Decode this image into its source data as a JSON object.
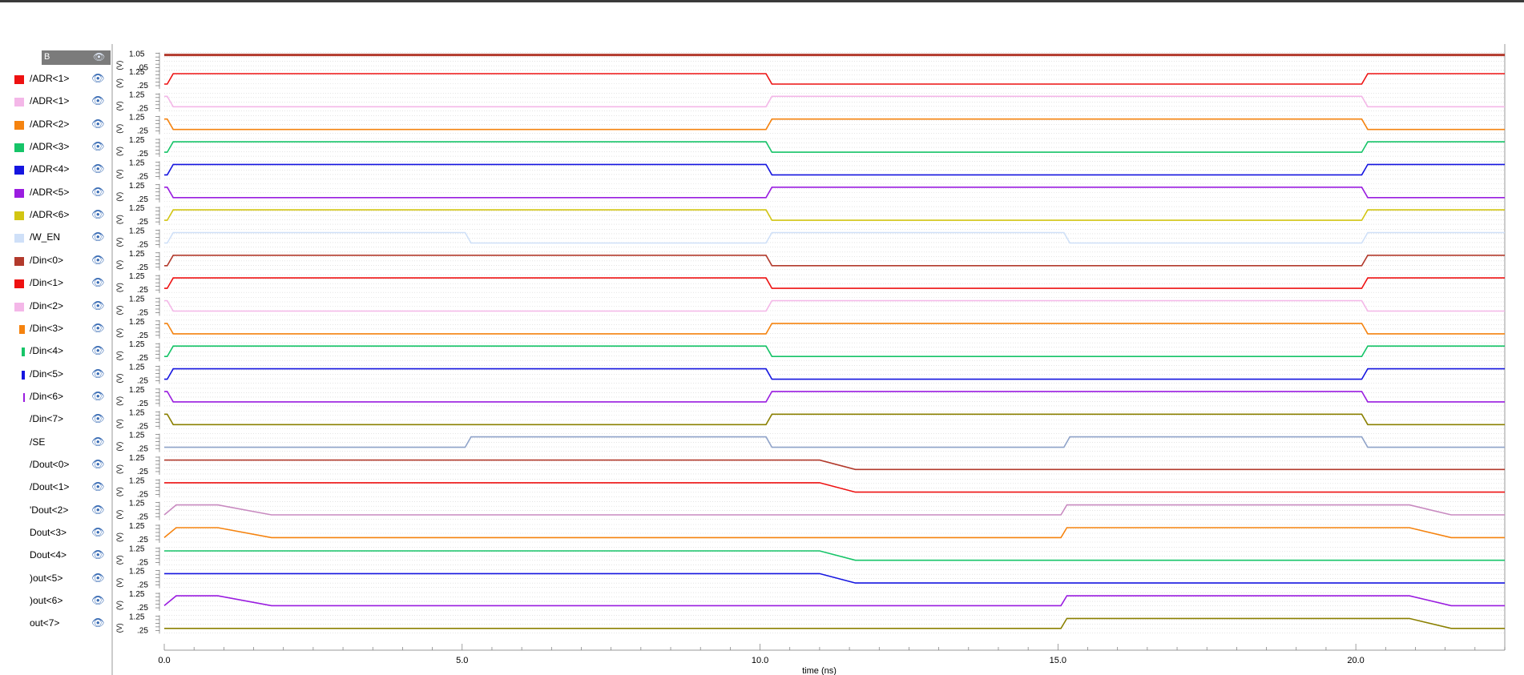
{
  "header": {
    "label": "B",
    "eye": "👁"
  },
  "signals": [
    {
      "name": "/ADR<1>",
      "color": "#ee1111",
      "swatch": "sq"
    },
    {
      "name": "/ADR<1>",
      "color": "#f4b7e8",
      "swatch": "sq"
    },
    {
      "name": "/ADR<2>",
      "color": "#f5830f",
      "swatch": "sq"
    },
    {
      "name": "/ADR<3>",
      "color": "#16c468",
      "swatch": "sq"
    },
    {
      "name": "/ADR<4>",
      "color": "#1515e0",
      "swatch": "sq"
    },
    {
      "name": "/ADR<5>",
      "color": "#9a1de0",
      "swatch": "sq"
    },
    {
      "name": "/ADR<6>",
      "color": "#d2c512",
      "swatch": "sq"
    },
    {
      "name": "/W_EN",
      "color": "#cfe0f8",
      "swatch": "sq"
    },
    {
      "name": "/Din<0>",
      "color": "#b23a2c",
      "swatch": "sq"
    },
    {
      "name": "/Din<1>",
      "color": "#ee1111",
      "swatch": "sq"
    },
    {
      "name": "/Din<2>",
      "color": "#f4b7e8",
      "swatch": "sq"
    },
    {
      "name": "/Din<3>",
      "color": "#f5830f",
      "swatch": "small"
    },
    {
      "name": "/Din<4>",
      "color": "#16c468",
      "swatch": "thin"
    },
    {
      "name": "/Din<5>",
      "color": "#1515e0",
      "swatch": "thin"
    },
    {
      "name": "/Din<6>",
      "color": "#9a1de0",
      "swatch": "line"
    },
    {
      "name": "/Din<7>",
      "color": "#8b8000",
      "swatch": "none"
    },
    {
      "name": "/SE",
      "color": "#8fa3c9",
      "swatch": "none"
    },
    {
      "name": "/Dout<0>",
      "color": "#b23a2c",
      "swatch": "none"
    },
    {
      "name": "/Dout<1>",
      "color": "#ee1111",
      "swatch": "none"
    },
    {
      "name": "'Dout<2>",
      "color": "#c88ac0",
      "swatch": "none"
    },
    {
      "name": "Dout<3>",
      "color": "#f5830f",
      "swatch": "none"
    },
    {
      "name": "Dout<4>",
      "color": "#16c468",
      "swatch": "none"
    },
    {
      "name": ")out<5>",
      "color": "#1515e0",
      "swatch": "none"
    },
    {
      "name": ")out<6>",
      "color": "#9a1de0",
      "swatch": "none"
    },
    {
      "name": "out<7>",
      "color": "#8b8000",
      "swatch": "none"
    }
  ],
  "chart_data": {
    "type": "line",
    "xlabel": "time (ns)",
    "x_ticks": [
      "0.0",
      "5.0",
      "10.0",
      "15.0",
      "20.0"
    ],
    "xlim": [
      0,
      22.5
    ],
    "unit_label": "(V)",
    "tick_labels": {
      "high": "1.25",
      "low": ".25"
    },
    "top_trace": {
      "color": "#b23a2c",
      "value": 1.05,
      "tick_labels": [
        "1.05",
        ".05"
      ]
    },
    "series": [
      {
        "name": "/ADR<1>",
        "initial": 0,
        "transitions": [
          [
            0.05,
            1
          ],
          [
            10.1,
            0
          ],
          [
            20.1,
            1
          ]
        ]
      },
      {
        "name": "/ADR<1>",
        "initial": 1,
        "transitions": [
          [
            0.05,
            0
          ],
          [
            10.1,
            1
          ],
          [
            20.1,
            0
          ]
        ]
      },
      {
        "name": "/ADR<2>",
        "initial": 1,
        "transitions": [
          [
            0.05,
            0
          ],
          [
            10.1,
            1
          ],
          [
            20.1,
            0
          ]
        ]
      },
      {
        "name": "/ADR<3>",
        "initial": 0,
        "transitions": [
          [
            0.05,
            1
          ],
          [
            10.1,
            0
          ],
          [
            20.1,
            1
          ]
        ]
      },
      {
        "name": "/ADR<4>",
        "initial": 0,
        "transitions": [
          [
            0.05,
            1
          ],
          [
            10.1,
            0
          ],
          [
            20.1,
            1
          ]
        ]
      },
      {
        "name": "/ADR<5>",
        "initial": 1,
        "transitions": [
          [
            0.05,
            0
          ],
          [
            10.1,
            1
          ],
          [
            20.1,
            0
          ]
        ]
      },
      {
        "name": "/ADR<6>",
        "initial": 0,
        "transitions": [
          [
            0.05,
            1
          ],
          [
            10.1,
            0
          ],
          [
            20.1,
            1
          ]
        ]
      },
      {
        "name": "/W_EN",
        "initial": 0,
        "transitions": [
          [
            0.05,
            1
          ],
          [
            5.05,
            0
          ],
          [
            10.1,
            1
          ],
          [
            15.1,
            0
          ],
          [
            20.1,
            1
          ]
        ]
      },
      {
        "name": "/Din<0>",
        "initial": 0,
        "transitions": [
          [
            0.05,
            1
          ],
          [
            10.1,
            0
          ],
          [
            20.1,
            1
          ]
        ]
      },
      {
        "name": "/Din<1>",
        "initial": 0,
        "transitions": [
          [
            0.05,
            1
          ],
          [
            10.1,
            0
          ],
          [
            20.1,
            1
          ]
        ]
      },
      {
        "name": "/Din<2>",
        "initial": 1,
        "transitions": [
          [
            0.05,
            0
          ],
          [
            10.1,
            1
          ],
          [
            20.1,
            0
          ]
        ]
      },
      {
        "name": "/Din<3>",
        "initial": 1,
        "transitions": [
          [
            0.05,
            0
          ],
          [
            10.1,
            1
          ],
          [
            20.1,
            0
          ]
        ]
      },
      {
        "name": "/Din<4>",
        "initial": 0,
        "transitions": [
          [
            0.05,
            1
          ],
          [
            10.1,
            0
          ],
          [
            20.1,
            1
          ]
        ]
      },
      {
        "name": "/Din<5>",
        "initial": 0,
        "transitions": [
          [
            0.05,
            1
          ],
          [
            10.1,
            0
          ],
          [
            20.1,
            1
          ]
        ]
      },
      {
        "name": "/Din<6>",
        "initial": 1,
        "transitions": [
          [
            0.05,
            0
          ],
          [
            10.1,
            1
          ],
          [
            20.1,
            0
          ]
        ]
      },
      {
        "name": "/Din<7>",
        "initial": 1,
        "transitions": [
          [
            0.05,
            0
          ],
          [
            10.1,
            1
          ],
          [
            20.1,
            0
          ]
        ]
      },
      {
        "name": "/SE",
        "initial": 0,
        "transitions": [
          [
            5.05,
            1
          ],
          [
            10.1,
            0
          ],
          [
            15.1,
            1
          ],
          [
            20.1,
            0
          ]
        ]
      },
      {
        "name": "/Dout<0>",
        "points": [
          [
            0,
            0.95
          ],
          [
            11.0,
            0.95
          ],
          [
            11.6,
            0.05
          ],
          [
            22.5,
            0.05
          ]
        ]
      },
      {
        "name": "/Dout<1>",
        "points": [
          [
            0,
            0.95
          ],
          [
            11.0,
            0.95
          ],
          [
            11.6,
            0.05
          ],
          [
            22.5,
            0.05
          ]
        ]
      },
      {
        "name": "'Dout<2>",
        "points": [
          [
            0,
            0.05
          ],
          [
            0.2,
            1.0
          ],
          [
            0.9,
            1.0
          ],
          [
            1.8,
            0.05
          ],
          [
            15.05,
            0.05
          ],
          [
            15.15,
            1.0
          ],
          [
            20.9,
            1.0
          ],
          [
            21.6,
            0.05
          ],
          [
            22.5,
            0.05
          ]
        ]
      },
      {
        "name": "Dout<3>",
        "points": [
          [
            0,
            0.05
          ],
          [
            0.2,
            1.0
          ],
          [
            0.9,
            1.0
          ],
          [
            1.8,
            0.05
          ],
          [
            15.05,
            0.05
          ],
          [
            15.15,
            1.0
          ],
          [
            20.9,
            1.0
          ],
          [
            21.6,
            0.05
          ],
          [
            22.5,
            0.05
          ]
        ]
      },
      {
        "name": "Dout<4>",
        "points": [
          [
            0,
            0.95
          ],
          [
            11.0,
            0.95
          ],
          [
            11.6,
            0.05
          ],
          [
            22.5,
            0.05
          ]
        ]
      },
      {
        "name": ")out<5>",
        "points": [
          [
            0,
            0.95
          ],
          [
            11.0,
            0.95
          ],
          [
            11.6,
            0.05
          ],
          [
            22.5,
            0.05
          ]
        ]
      },
      {
        "name": ")out<6>",
        "points": [
          [
            0,
            0.05
          ],
          [
            0.2,
            1.0
          ],
          [
            0.9,
            1.0
          ],
          [
            1.8,
            0.05
          ],
          [
            15.05,
            0.05
          ],
          [
            15.15,
            1.0
          ],
          [
            20.9,
            1.0
          ],
          [
            21.6,
            0.05
          ],
          [
            22.5,
            0.05
          ]
        ]
      },
      {
        "name": "out<7>",
        "points": [
          [
            0,
            0.05
          ],
          [
            15.05,
            0.05
          ],
          [
            15.15,
            1.0
          ],
          [
            20.9,
            1.0
          ],
          [
            21.6,
            0.05
          ],
          [
            22.5,
            0.05
          ]
        ]
      }
    ]
  }
}
